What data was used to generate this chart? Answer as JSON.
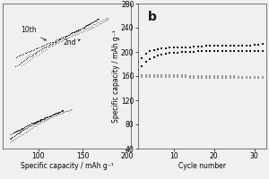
{
  "panel_a": {
    "xlabel": "Specific capacity / mAh g⁻¹",
    "xlim": [
      60,
      205
    ],
    "xticks": [
      100,
      150,
      200
    ],
    "ylim": [
      2.4,
      3.95
    ],
    "annotations": [
      "10th",
      "2nd"
    ],
    "upper_charge_dark_x": [
      75,
      85,
      95,
      105,
      115,
      125,
      135,
      143,
      150,
      157,
      163,
      168
    ],
    "upper_charge_dark_y": [
      3.38,
      3.42,
      3.46,
      3.5,
      3.54,
      3.58,
      3.62,
      3.66,
      3.69,
      3.73,
      3.76,
      3.79
    ],
    "upper_discharge_dark_x": [
      168,
      163,
      157,
      150,
      143,
      135,
      125,
      115,
      105,
      95,
      85,
      75
    ],
    "upper_discharge_dark_y": [
      3.79,
      3.76,
      3.73,
      3.69,
      3.66,
      3.62,
      3.57,
      3.52,
      3.47,
      3.41,
      3.35,
      3.28
    ],
    "upper_charge_gray_x": [
      85,
      95,
      105,
      115,
      125,
      135,
      145,
      155,
      163,
      170,
      176,
      180
    ],
    "upper_charge_gray_y": [
      3.38,
      3.42,
      3.47,
      3.51,
      3.55,
      3.59,
      3.63,
      3.67,
      3.7,
      3.74,
      3.77,
      3.8
    ],
    "upper_discharge_gray_x": [
      178,
      172,
      165,
      158,
      150,
      142,
      132,
      122,
      112,
      102,
      92,
      82
    ],
    "upper_discharge_gray_y": [
      3.8,
      3.77,
      3.74,
      3.7,
      3.67,
      3.63,
      3.58,
      3.53,
      3.48,
      3.42,
      3.36,
      3.29
    ],
    "lower_charge_dark_x": [
      68,
      78,
      88,
      98,
      108,
      118,
      128
    ],
    "lower_charge_dark_y": [
      2.55,
      2.6,
      2.65,
      2.69,
      2.73,
      2.77,
      2.81
    ],
    "lower_discharge_dark_x": [
      128,
      118,
      108,
      98,
      88,
      78,
      68
    ],
    "lower_discharge_dark_y": [
      2.81,
      2.77,
      2.73,
      2.68,
      2.63,
      2.57,
      2.5
    ],
    "lower_charge_gray_x": [
      68,
      78,
      88,
      98,
      108,
      118,
      128,
      138
    ],
    "lower_charge_gray_y": [
      2.55,
      2.59,
      2.63,
      2.67,
      2.71,
      2.75,
      2.79,
      2.82
    ],
    "lower_discharge_gray_x": [
      138,
      128,
      118,
      108,
      98,
      88,
      78,
      68
    ],
    "lower_discharge_gray_y": [
      2.82,
      2.79,
      2.75,
      2.7,
      2.65,
      2.59,
      2.53,
      2.47
    ]
  },
  "panel_b": {
    "label": "b",
    "xlabel": "Cycle number",
    "ylabel": "Specific capacity / mAh g⁻¹",
    "ylim": [
      40,
      280
    ],
    "yticks": [
      40,
      80,
      120,
      160,
      200,
      240,
      280
    ],
    "xlim": [
      1,
      33
    ],
    "xticks": [
      10,
      20,
      30
    ],
    "charge_dark_x": [
      1,
      2,
      3,
      4,
      5,
      6,
      7,
      8,
      9,
      10,
      11,
      12,
      13,
      14,
      15,
      16,
      17,
      18,
      19,
      20,
      21,
      22,
      23,
      24,
      25,
      26,
      27,
      28,
      29,
      30,
      31,
      32
    ],
    "charge_dark_y": [
      183,
      190,
      197,
      201,
      203,
      205,
      206,
      206,
      207,
      207,
      208,
      208,
      208,
      208,
      209,
      209,
      209,
      210,
      210,
      210,
      210,
      210,
      210,
      210,
      211,
      211,
      211,
      211,
      211,
      212,
      212,
      213
    ],
    "discharge_dark_x": [
      1,
      2,
      3,
      4,
      5,
      6,
      7,
      8,
      9,
      10,
      11,
      12,
      13,
      14,
      15,
      16,
      17,
      18,
      19,
      20,
      21,
      22,
      23,
      24,
      25,
      26,
      27,
      28,
      29,
      30,
      31,
      32
    ],
    "discharge_dark_y": [
      170,
      177,
      183,
      188,
      191,
      194,
      196,
      197,
      198,
      199,
      199,
      200,
      200,
      200,
      200,
      201,
      201,
      201,
      201,
      201,
      202,
      202,
      202,
      202,
      202,
      202,
      202,
      202,
      202,
      202,
      202,
      202
    ],
    "charge_gray_x": [
      1,
      2,
      3,
      4,
      5,
      6,
      7,
      8,
      9,
      10,
      11,
      12,
      13,
      14,
      15,
      16,
      17,
      18,
      19,
      20,
      21,
      22,
      23,
      24,
      25,
      26,
      27,
      28,
      29,
      30,
      31,
      32
    ],
    "charge_gray_y": [
      163,
      162,
      162,
      162,
      162,
      161,
      161,
      161,
      161,
      161,
      161,
      161,
      161,
      160,
      160,
      160,
      160,
      160,
      160,
      160,
      160,
      160,
      160,
      160,
      160,
      159,
      159,
      159,
      159,
      159,
      159,
      159
    ],
    "discharge_gray_x": [
      1,
      2,
      3,
      4,
      5,
      6,
      7,
      8,
      9,
      10,
      11,
      12,
      13,
      14,
      15,
      16,
      17,
      18,
      19,
      20,
      21,
      22,
      23,
      24,
      25,
      26,
      27,
      28,
      29,
      30,
      31,
      32
    ],
    "discharge_gray_y": [
      158,
      158,
      158,
      158,
      158,
      158,
      158,
      158,
      158,
      158,
      158,
      158,
      158,
      157,
      157,
      157,
      157,
      157,
      157,
      157,
      157,
      157,
      157,
      157,
      157,
      157,
      157,
      157,
      157,
      157,
      157,
      157
    ]
  },
  "bg_color": "#f0f0f0",
  "dark_color": "#111111",
  "gray_color": "#999999",
  "font_size": 5.5
}
